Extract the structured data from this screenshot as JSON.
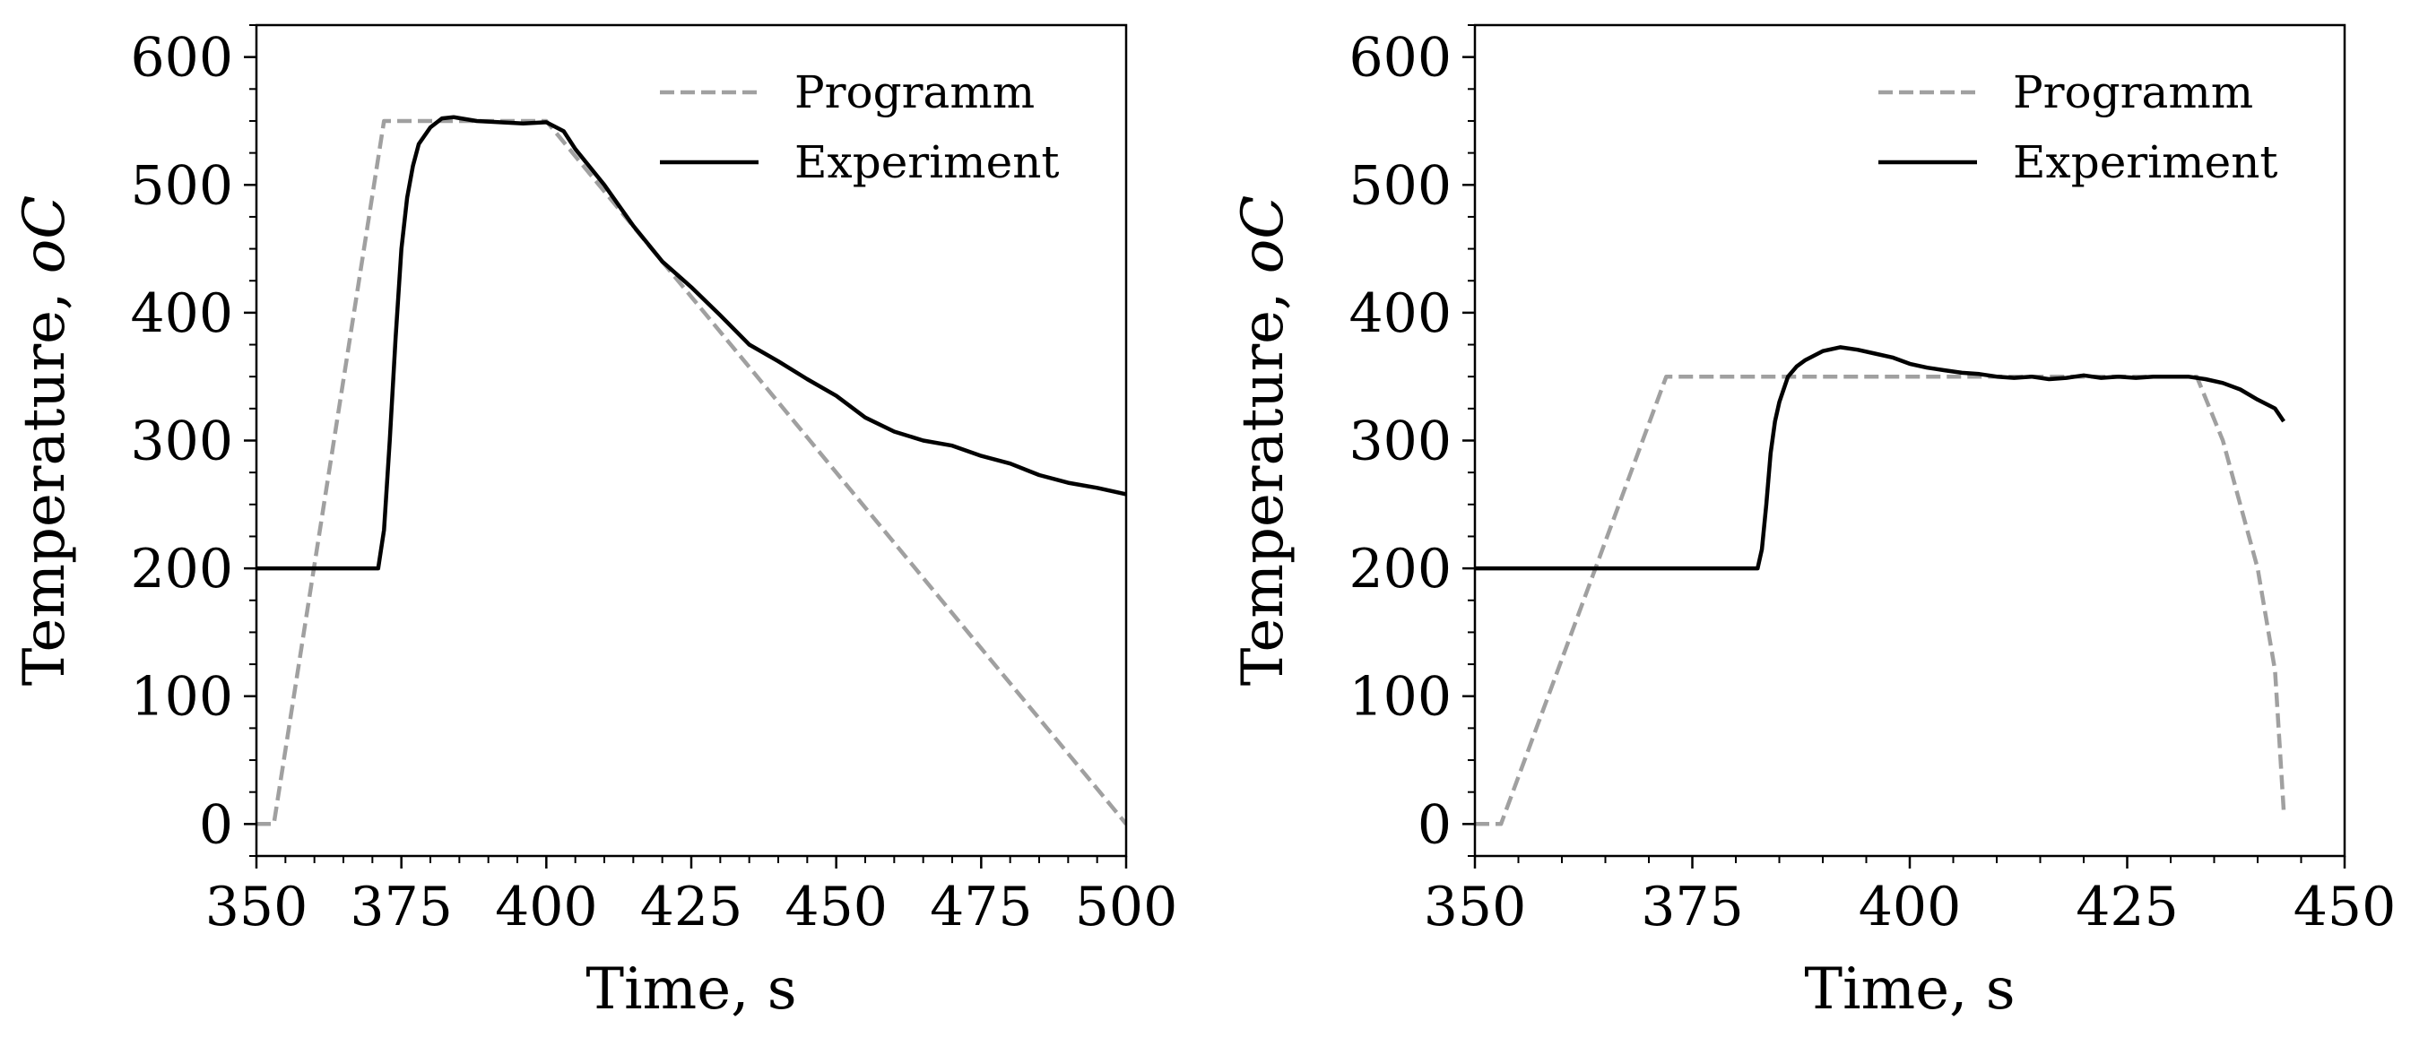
{
  "colors": {
    "programm": "#a0a0a0",
    "experiment": "#000000"
  },
  "chart_data": [
    {
      "type": "line",
      "xlabel": "Time, s",
      "ylabel": "Temperature, ",
      "ylabel_unit": "oC",
      "xlim": [
        350,
        500
      ],
      "ylim": [
        -25,
        625
      ],
      "xticks": [
        "350",
        "375",
        "400",
        "425",
        "450",
        "475",
        "500"
      ],
      "yticks": [
        "0",
        "100",
        "200",
        "300",
        "400",
        "500",
        "600"
      ],
      "legend_position": "top-right",
      "grid": false,
      "series": [
        {
          "name": "Programm",
          "style": "dashed",
          "x": [
            350,
            353,
            372,
            400,
            500
          ],
          "y": [
            0,
            0,
            550,
            550,
            0
          ]
        },
        {
          "name": "Experiment",
          "style": "solid",
          "x": [
            350,
            371,
            372,
            373,
            374,
            375,
            376,
            377,
            378,
            380,
            382,
            384,
            388,
            392,
            396,
            400,
            403,
            405,
            410,
            415,
            420,
            425,
            430,
            435,
            440,
            445,
            450,
            455,
            460,
            465,
            470,
            475,
            480,
            485,
            490,
            495,
            500
          ],
          "y": [
            200,
            200,
            230,
            300,
            380,
            450,
            490,
            515,
            532,
            545,
            552,
            553,
            550,
            549,
            548,
            549,
            542,
            528,
            500,
            468,
            440,
            420,
            398,
            375,
            362,
            348,
            335,
            318,
            307,
            300,
            296,
            288,
            282,
            273,
            267,
            263,
            258
          ]
        }
      ]
    },
    {
      "type": "line",
      "xlabel": "Time, s",
      "ylabel": "Temperature, ",
      "ylabel_unit": "oC",
      "xlim": [
        350,
        450
      ],
      "ylim": [
        -25,
        625
      ],
      "xticks": [
        "350",
        "375",
        "400",
        "425",
        "450"
      ],
      "yticks": [
        "0",
        "100",
        "200",
        "300",
        "400",
        "500",
        "600"
      ],
      "legend_position": "top-right",
      "grid": false,
      "series": [
        {
          "name": "Programm",
          "style": "dashed",
          "x": [
            350,
            353,
            372,
            433,
            436,
            438,
            440,
            442,
            443
          ],
          "y": [
            0,
            0,
            350,
            350,
            300,
            250,
            200,
            120,
            10
          ]
        },
        {
          "name": "Experiment",
          "style": "solid",
          "x": [
            350,
            382.5,
            383,
            383.5,
            384,
            384.5,
            385,
            385.5,
            386,
            387,
            388,
            390,
            392,
            394,
            396,
            398,
            400,
            402,
            404,
            406,
            408,
            410,
            412,
            414,
            416,
            418,
            420,
            422,
            424,
            426,
            428,
            430,
            432,
            434,
            436,
            438,
            440,
            442,
            443
          ],
          "y": [
            200,
            200,
            215,
            250,
            290,
            315,
            330,
            340,
            350,
            358,
            363,
            370,
            373,
            371,
            368,
            365,
            360,
            357,
            355,
            353,
            352,
            350,
            349,
            350,
            348,
            349,
            351,
            349,
            350,
            349,
            350,
            350,
            350,
            348,
            345,
            340,
            332,
            325,
            315
          ]
        }
      ]
    }
  ]
}
